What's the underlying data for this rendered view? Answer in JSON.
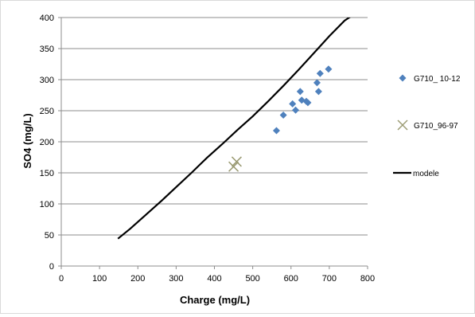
{
  "chart_data": {
    "type": "scatter",
    "xlabel": "Charge (mg/L)",
    "ylabel": "SO4 (mg/L)",
    "xlim": [
      0,
      800
    ],
    "ylim": [
      0,
      400
    ],
    "x_ticks": [
      0,
      100,
      200,
      300,
      400,
      500,
      600,
      700,
      800
    ],
    "y_ticks": [
      0,
      50,
      100,
      150,
      200,
      250,
      300,
      350,
      400
    ],
    "grid": "horizontal",
    "legend_position": "right",
    "series": [
      {
        "name": "G710_ 10-12",
        "kind": "scatter",
        "marker": "diamond",
        "color": "#4f81bd",
        "points": [
          [
            562,
            218
          ],
          [
            580,
            243
          ],
          [
            604,
            261
          ],
          [
            612,
            251
          ],
          [
            624,
            281
          ],
          [
            628,
            267
          ],
          [
            640,
            265
          ],
          [
            644,
            263
          ],
          [
            668,
            295
          ],
          [
            672,
            281
          ],
          [
            676,
            310
          ],
          [
            698,
            317
          ]
        ]
      },
      {
        "name": "G710_96-97",
        "kind": "scatter",
        "marker": "x",
        "color": "#9b9b73",
        "points": [
          [
            450,
            160
          ],
          [
            458,
            168
          ]
        ]
      },
      {
        "name": "modele",
        "kind": "line",
        "color": "#000000",
        "points": [
          [
            148,
            44
          ],
          [
            180,
            60
          ],
          [
            220,
            82
          ],
          [
            260,
            104
          ],
          [
            300,
            127
          ],
          [
            340,
            150
          ],
          [
            380,
            174
          ],
          [
            420,
            196
          ],
          [
            460,
            219
          ],
          [
            500,
            241
          ],
          [
            540,
            265
          ],
          [
            580,
            290
          ],
          [
            620,
            316
          ],
          [
            660,
            343
          ],
          [
            700,
            370
          ],
          [
            740,
            395
          ],
          [
            764,
            405
          ]
        ]
      }
    ]
  }
}
